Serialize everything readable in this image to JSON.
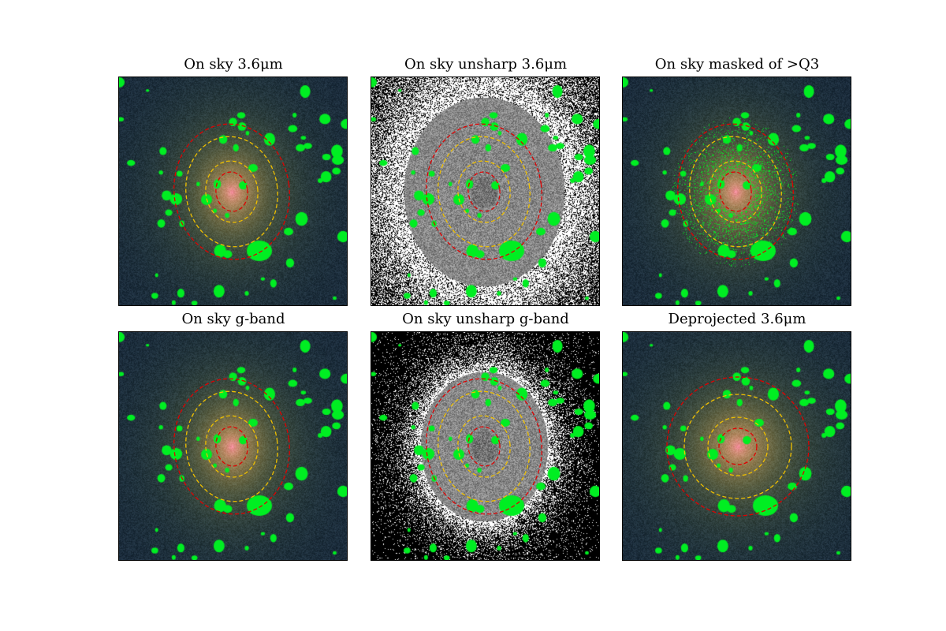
{
  "panels": [
    {
      "title": "On sky 3.6μm",
      "style": "color",
      "ellipses": "tilted"
    },
    {
      "title": "On sky unsharp 3.6μm",
      "style": "unsharp-coarse",
      "ellipses": "tilted"
    },
    {
      "title": "On sky masked of >Q3",
      "style": "masked",
      "ellipses": "tilted"
    },
    {
      "title": "On sky g-band",
      "style": "color",
      "ellipses": "tilted"
    },
    {
      "title": "On sky unsharp g-band",
      "style": "unsharp-fine",
      "ellipses": "tilted"
    },
    {
      "title": "Deprojected 3.6μm",
      "style": "color",
      "ellipses": "deprojected"
    }
  ],
  "colors": {
    "mask": "#00ee22",
    "ellipse_outer": "#e00000",
    "ellipse_mid": "#f0c000",
    "sky": "#0d1a2a",
    "core": "#e070a0"
  }
}
